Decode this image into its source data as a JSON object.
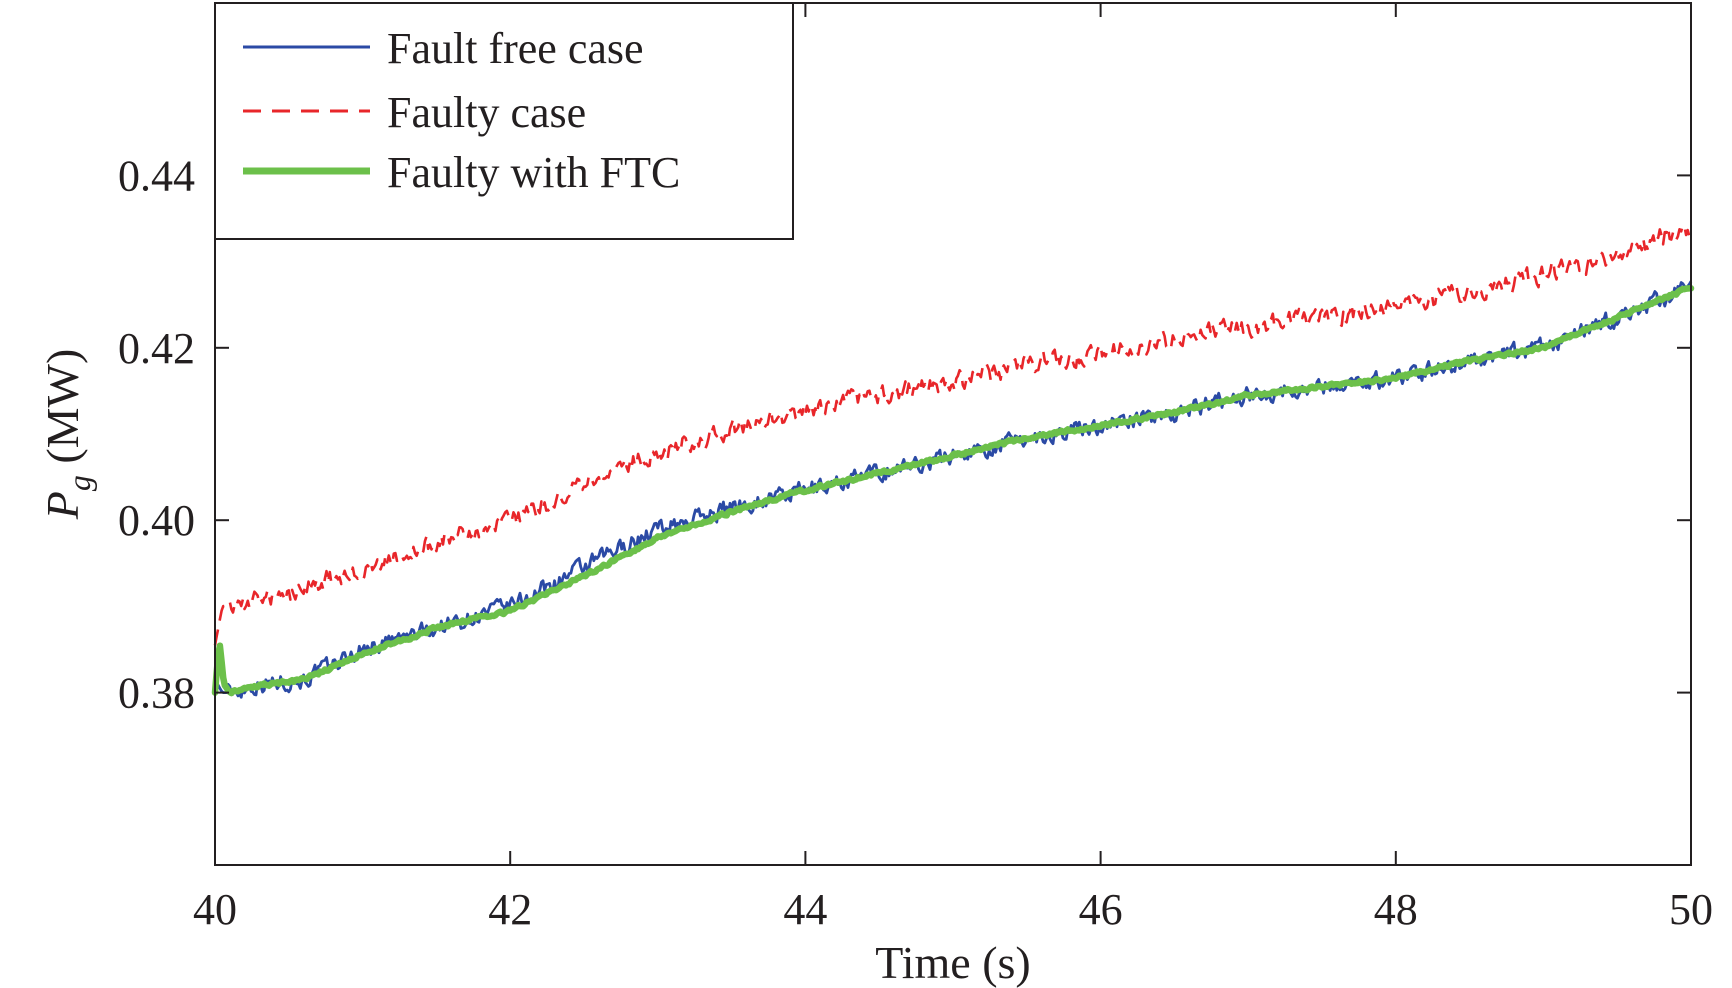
{
  "chart_data": {
    "type": "line",
    "xlabel": "Time (s)",
    "ylabel_symbol": "P",
    "ylabel_subscript": "g",
    "ylabel_unit": " (MW)",
    "xlim": [
      40,
      50
    ],
    "ylim": [
      0.36,
      0.46
    ],
    "xticks": [
      40,
      42,
      44,
      46,
      48,
      50
    ],
    "xtick_labels": [
      "40",
      "42",
      "44",
      "46",
      "48",
      "50"
    ],
    "yticks": [
      0.38,
      0.4,
      0.42,
      0.44
    ],
    "ytick_labels": [
      "0.38",
      "0.40",
      "0.42",
      "0.44"
    ],
    "grid": false,
    "legend_position": "top-left",
    "series": [
      {
        "name": "Fault free case",
        "color": "#2b4aa5",
        "style": "solid",
        "noise": 0.0016,
        "x": [
          40.0,
          40.05,
          40.1,
          40.3,
          40.6,
          41.0,
          41.5,
          42.0,
          42.5,
          43.0,
          43.5,
          44.0,
          44.5,
          45.0,
          45.5,
          46.0,
          46.5,
          47.0,
          47.5,
          48.0,
          48.5,
          49.0,
          49.5,
          50.0
        ],
        "y": [
          0.3815,
          0.38,
          0.38,
          0.381,
          0.3815,
          0.385,
          0.3875,
          0.39,
          0.3945,
          0.399,
          0.4015,
          0.4035,
          0.4055,
          0.4075,
          0.4095,
          0.411,
          0.4125,
          0.4145,
          0.4155,
          0.4165,
          0.4185,
          0.42,
          0.4235,
          0.427
        ]
      },
      {
        "name": "Faulty case",
        "color": "#e8262a",
        "style": "dashed",
        "noise": 0.0018,
        "x": [
          40.0,
          40.05,
          40.2,
          40.5,
          41.0,
          41.5,
          42.0,
          42.5,
          43.0,
          43.5,
          44.0,
          44.5,
          45.0,
          45.5,
          46.0,
          46.5,
          47.0,
          47.5,
          48.0,
          48.5,
          49.0,
          49.5,
          50.0
        ],
        "y": [
          0.3855,
          0.39,
          0.3905,
          0.3915,
          0.3945,
          0.3975,
          0.4,
          0.404,
          0.408,
          0.4105,
          0.4125,
          0.4145,
          0.416,
          0.418,
          0.4195,
          0.421,
          0.4225,
          0.4235,
          0.425,
          0.4265,
          0.4285,
          0.431,
          0.434
        ]
      },
      {
        "name": "Faulty with FTC",
        "color": "#6cc04a",
        "style": "solid-thick",
        "noise": 0.0003,
        "x": [
          40.0,
          40.03,
          40.06,
          40.1,
          40.3,
          40.6,
          41.0,
          41.5,
          42.0,
          42.5,
          43.0,
          43.5,
          44.0,
          44.5,
          45.0,
          45.5,
          46.0,
          46.5,
          47.0,
          47.5,
          48.0,
          48.5,
          49.0,
          49.5,
          50.0
        ],
        "y": [
          0.38,
          0.386,
          0.381,
          0.38,
          0.3808,
          0.3815,
          0.3845,
          0.3875,
          0.3895,
          0.3935,
          0.398,
          0.401,
          0.4035,
          0.4055,
          0.4075,
          0.4095,
          0.411,
          0.4125,
          0.4145,
          0.4155,
          0.4165,
          0.4185,
          0.42,
          0.4235,
          0.427
        ]
      }
    ]
  }
}
